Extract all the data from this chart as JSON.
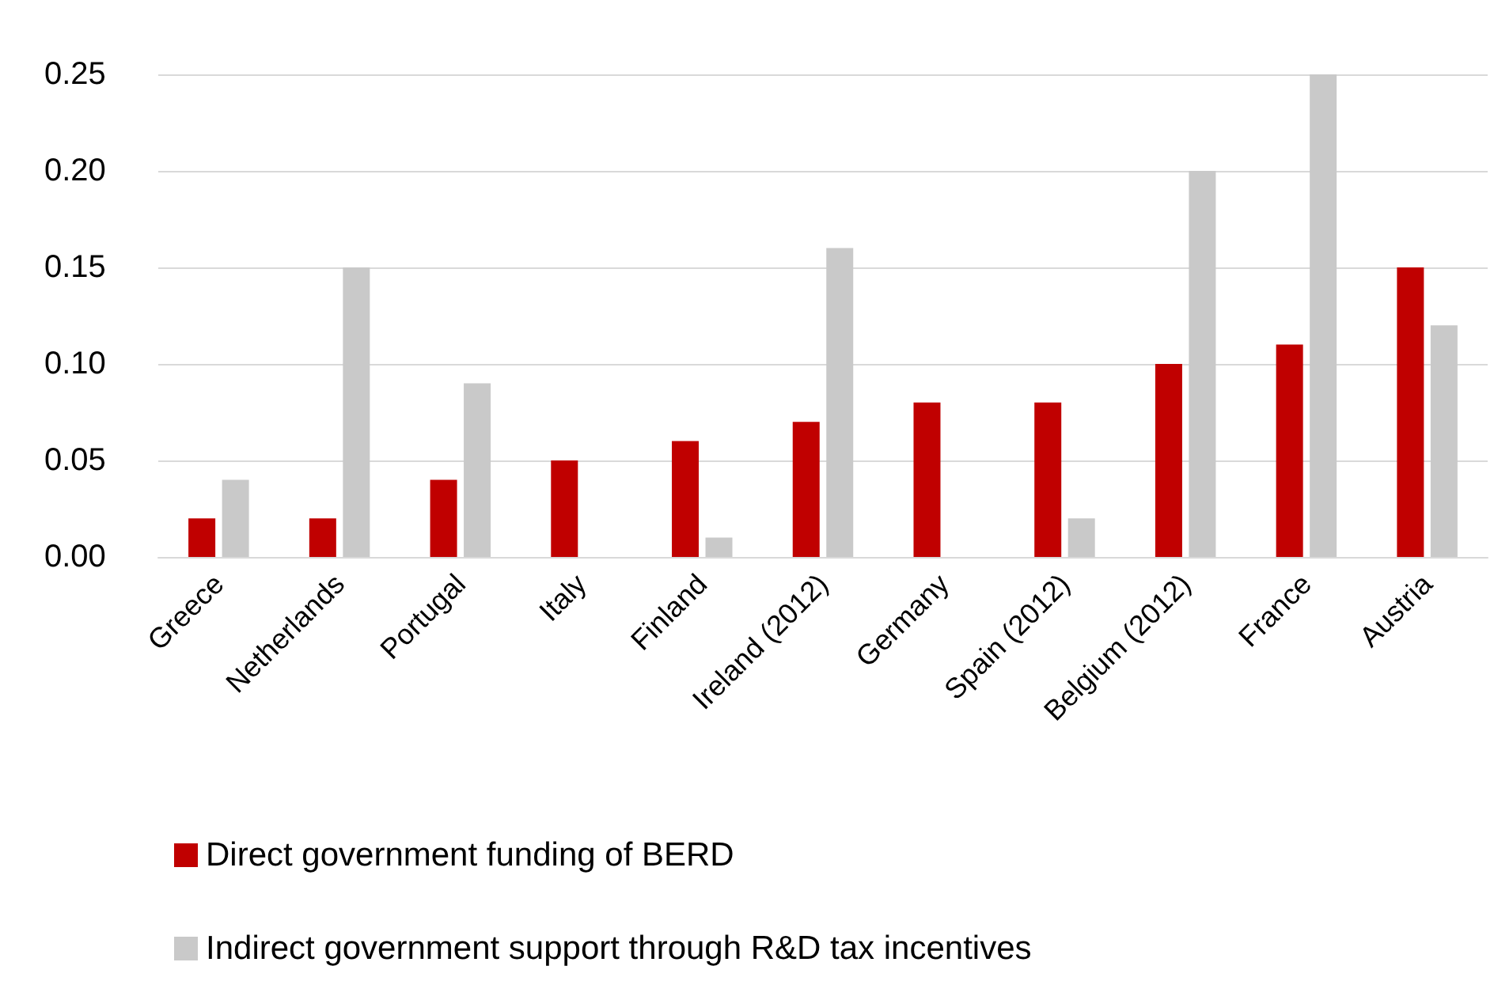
{
  "chart_data": {
    "type": "bar",
    "categories": [
      "Greece",
      "Netherlands",
      "Portugal",
      "Italy",
      "Finland",
      "Ireland (2012)",
      "Germany",
      "Spain (2012)",
      "Belgium (2012)",
      "France",
      "Austria"
    ],
    "series": [
      {
        "name": "Direct government funding of BERD",
        "color": "#c00000",
        "values": [
          0.02,
          0.02,
          0.04,
          0.05,
          0.06,
          0.07,
          0.08,
          0.08,
          0.1,
          0.11,
          0.15
        ]
      },
      {
        "name": "Indirect government support through R&D tax incentives",
        "color": "#c9c9c9",
        "values": [
          0.04,
          0.15,
          0.09,
          0,
          0.01,
          0.16,
          0,
          0.02,
          0.2,
          0.25,
          0.12
        ]
      }
    ],
    "ylim": [
      0,
      0.25
    ],
    "yticks": [
      {
        "value": 0,
        "label": "0.00"
      },
      0.05,
      {
        "value": 0.1,
        "label": "0.10"
      },
      0.15,
      {
        "value": 0.2,
        "label": "0.20"
      },
      0.25
    ],
    "grid": "y",
    "legend": "bottom"
  }
}
